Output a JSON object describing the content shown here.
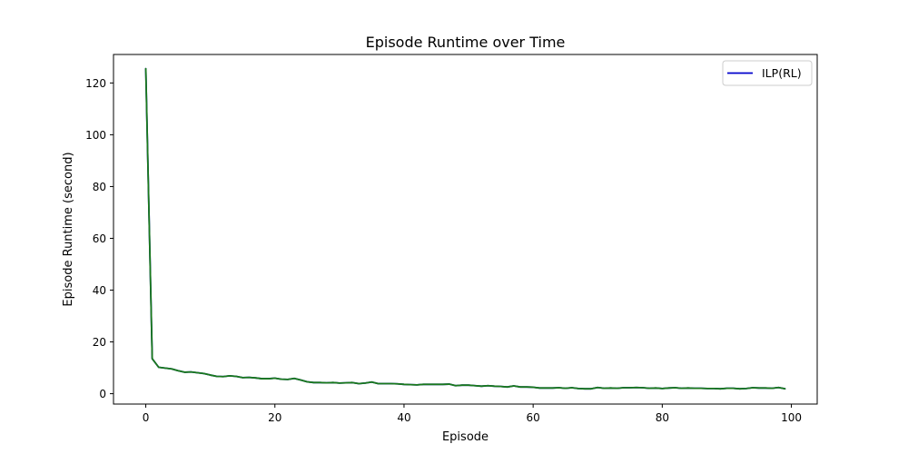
{
  "chart_data": {
    "type": "line",
    "title": "Episode Runtime over Time",
    "xlabel": "Episode",
    "ylabel": "Episode Runtime (second)",
    "xlim": [
      -5,
      104
    ],
    "ylim": [
      -4,
      131
    ],
    "xticks": [
      0,
      20,
      40,
      60,
      80,
      100
    ],
    "yticks": [
      0,
      20,
      40,
      60,
      80,
      100,
      120
    ],
    "grid": false,
    "legend_position": "top-right",
    "series": [
      {
        "name": "ILP(RL)",
        "color": "#0000cc",
        "legend": true,
        "x": [
          0,
          1,
          2,
          3,
          4,
          5,
          6,
          7,
          8,
          9,
          10,
          11,
          12,
          13,
          14,
          15,
          16,
          17,
          18,
          19,
          20,
          21,
          22,
          23,
          24,
          25,
          26,
          27,
          28,
          29,
          30,
          31,
          32,
          33,
          34,
          35,
          36,
          37,
          38,
          39,
          40,
          41,
          42,
          43,
          44,
          45,
          46,
          47,
          48,
          49,
          50,
          51,
          52,
          53,
          54,
          55,
          56,
          57,
          58,
          59,
          60,
          61,
          62,
          63,
          64,
          65,
          66,
          67,
          68,
          69,
          70,
          71,
          72,
          73,
          74,
          75,
          76,
          77,
          78,
          79,
          80,
          81,
          82,
          83,
          84,
          85,
          86,
          87,
          88,
          89,
          90,
          91,
          92,
          93,
          94,
          95,
          96,
          97,
          98,
          99
        ],
        "values": [
          125.5,
          13.5,
          10.2,
          9.9,
          9.6,
          8.9,
          8.3,
          8.4,
          8.1,
          7.8,
          7.2,
          6.7,
          6.6,
          6.9,
          6.7,
          6.2,
          6.3,
          6.1,
          5.8,
          5.8,
          6.0,
          5.6,
          5.5,
          5.9,
          5.3,
          4.6,
          4.3,
          4.3,
          4.2,
          4.3,
          4.1,
          4.2,
          4.3,
          3.9,
          4.1,
          4.5,
          3.9,
          3.9,
          3.9,
          3.8,
          3.6,
          3.5,
          3.4,
          3.6,
          3.6,
          3.6,
          3.6,
          3.7,
          3.1,
          3.3,
          3.3,
          3.1,
          2.9,
          3.1,
          2.9,
          2.8,
          2.6,
          3.0,
          2.6,
          2.6,
          2.5,
          2.2,
          2.2,
          2.2,
          2.3,
          2.1,
          2.3,
          2.0,
          1.9,
          1.9,
          2.4,
          2.1,
          2.2,
          2.1,
          2.3,
          2.3,
          2.4,
          2.3,
          2.1,
          2.2,
          2.0,
          2.2,
          2.3,
          2.1,
          2.2,
          2.1,
          2.1,
          2.0,
          2.0,
          1.9,
          2.1,
          2.1,
          1.9,
          2.0,
          2.3,
          2.2,
          2.2,
          2.1,
          2.4,
          1.9
        ]
      },
      {
        "color": "#1a7a1a",
        "legend": false,
        "x": [
          0,
          1,
          2,
          3,
          4,
          5,
          6,
          7,
          8,
          9,
          10,
          11,
          12,
          13,
          14,
          15,
          16,
          17,
          18,
          19,
          20,
          21,
          22,
          23,
          24,
          25,
          26,
          27,
          28,
          29,
          30,
          31,
          32,
          33,
          34,
          35,
          36,
          37,
          38,
          39,
          40,
          41,
          42,
          43,
          44,
          45,
          46,
          47,
          48,
          49,
          50,
          51,
          52,
          53,
          54,
          55,
          56,
          57,
          58,
          59,
          60,
          61,
          62,
          63,
          64,
          65,
          66,
          67,
          68,
          69,
          70,
          71,
          72,
          73,
          74,
          75,
          76,
          77,
          78,
          79,
          80,
          81,
          82,
          83,
          84,
          85,
          86,
          87,
          88,
          89,
          90,
          91,
          92,
          93,
          94,
          95,
          96,
          97,
          98,
          99
        ],
        "values": [
          125.5,
          13.5,
          10.2,
          9.9,
          9.6,
          8.9,
          8.3,
          8.4,
          8.1,
          7.8,
          7.2,
          6.7,
          6.6,
          6.9,
          6.7,
          6.2,
          6.3,
          6.1,
          5.8,
          5.8,
          6.0,
          5.6,
          5.5,
          5.9,
          5.3,
          4.6,
          4.3,
          4.3,
          4.2,
          4.3,
          4.1,
          4.2,
          4.3,
          3.9,
          4.1,
          4.5,
          3.9,
          3.9,
          3.9,
          3.8,
          3.6,
          3.5,
          3.4,
          3.6,
          3.6,
          3.6,
          3.6,
          3.7,
          3.1,
          3.3,
          3.3,
          3.1,
          2.9,
          3.1,
          2.9,
          2.8,
          2.6,
          3.0,
          2.6,
          2.6,
          2.5,
          2.2,
          2.2,
          2.2,
          2.3,
          2.1,
          2.3,
          2.0,
          1.9,
          1.9,
          2.4,
          2.1,
          2.2,
          2.1,
          2.3,
          2.3,
          2.4,
          2.3,
          2.1,
          2.2,
          2.0,
          2.2,
          2.3,
          2.1,
          2.2,
          2.1,
          2.1,
          2.0,
          2.0,
          1.9,
          2.1,
          2.1,
          1.9,
          2.0,
          2.3,
          2.2,
          2.2,
          2.1,
          2.4,
          1.9
        ]
      }
    ]
  }
}
